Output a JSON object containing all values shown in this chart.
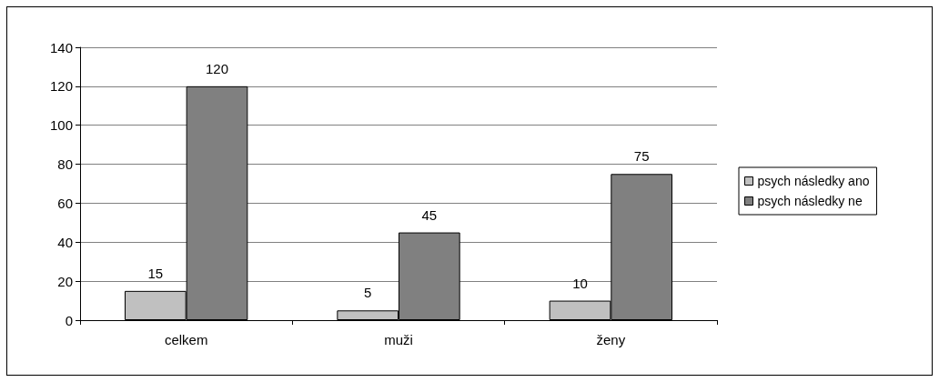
{
  "chart_data": {
    "type": "bar",
    "categories": [
      "celkem",
      "muži",
      "ženy"
    ],
    "series": [
      {
        "name": "psych následky ano",
        "color": "#c0c0c0",
        "values": [
          15,
          5,
          10
        ]
      },
      {
        "name": "psych následky ne",
        "color": "#808080",
        "values": [
          120,
          45,
          75
        ]
      }
    ],
    "ylim": [
      0,
      140
    ],
    "yticks": [
      0,
      20,
      40,
      60,
      80,
      100,
      120,
      140
    ],
    "grid": "y",
    "legend": "right",
    "data_labels": true
  }
}
